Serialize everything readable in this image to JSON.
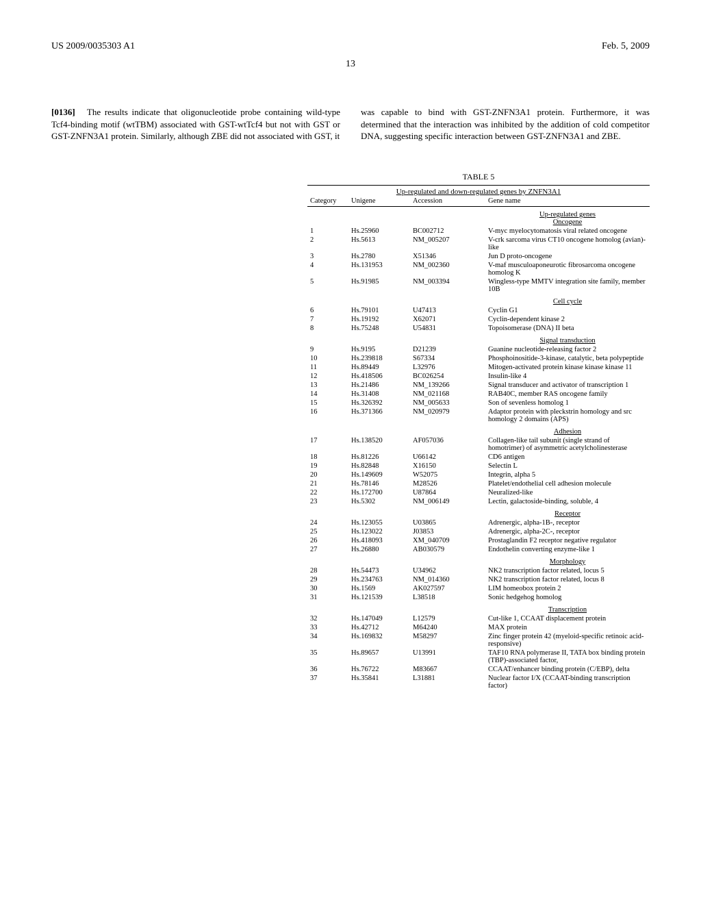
{
  "header": {
    "left": "US 2009/0035303 A1",
    "right": "Feb. 5, 2009"
  },
  "page_number": "13",
  "left_para": {
    "num": "[0136]",
    "text": "The results indicate that oligonucleotide probe containing wild-type Tcf4-binding motif (wtTBM) associated with GST-wtTcf4 but not with GST or GST-ZNFN3A1 protein. Similarly, although ZBE did not associated with GST, it"
  },
  "right_para": {
    "text": "was capable to bind with GST-ZNFN3A1 protein. Furthermore, it was determined that the interaction was inhibited by the addition of cold competitor DNA, suggesting specific interaction between GST-ZNFN3A1 and ZBE."
  },
  "table": {
    "caption": "TABLE 5",
    "subcaption": "Up-regulated and down-regulated genes by ZNFN3A1",
    "columns": [
      "Category",
      "Unigene",
      "Accession",
      "Gene name"
    ],
    "sections": [
      {
        "title_lines": [
          "Up-regulated genes",
          "Oncogene"
        ],
        "rows": [
          [
            "1",
            "Hs.25960",
            "BC002712",
            "V-myc myelocytomatosis viral related oncogene"
          ],
          [
            "2",
            "Hs.5613",
            "NM_005207",
            "V-crk sarcoma virus CT10 oncogene homolog (avian)-like"
          ],
          [
            "3",
            "Hs.2780",
            "X51346",
            "Jun D proto-oncogene"
          ],
          [
            "4",
            "Hs.131953",
            "NM_002360",
            "V-maf musculoaponeurotic fibrosarcoma oncogene homolog K"
          ],
          [
            "5",
            "Hs.91985",
            "NM_003394",
            "Wingless-type MMTV integration site family, member 10B"
          ]
        ]
      },
      {
        "title_lines": [
          "Cell cycle"
        ],
        "rows": [
          [
            "6",
            "Hs.79101",
            "U47413",
            "Cyclin G1"
          ],
          [
            "7",
            "Hs.19192",
            "X62071",
            "Cyclin-dependent kinase 2"
          ],
          [
            "8",
            "Hs.75248",
            "U54831",
            "Topoisomerase (DNA) II beta"
          ]
        ]
      },
      {
        "title_lines": [
          "Signal transduction"
        ],
        "rows": [
          [
            "9",
            "Hs.9195",
            "D21239",
            "Guanine nucleotide-releasing factor 2"
          ],
          [
            "10",
            "Hs.239818",
            "S67334",
            "Phosphoinositide-3-kinase, catalytic, beta polypeptide"
          ],
          [
            "11",
            "Hs.89449",
            "L32976",
            "Mitogen-activated protein kinase kinase kinase 11"
          ],
          [
            "12",
            "Hs.418506",
            "BC026254",
            "Insulin-like 4"
          ],
          [
            "13",
            "Hs.21486",
            "NM_139266",
            "Signal transducer and activator of transcription 1"
          ],
          [
            "14",
            "Hs.31408",
            "NM_021168",
            "RAB40C, member RAS oncogene family"
          ],
          [
            "15",
            "Hs.326392",
            "NM_005633",
            "Son of sevenless homolog 1"
          ],
          [
            "16",
            "Hs.371366",
            "NM_020979",
            "Adaptor protein with pleckstrin homology and src homology 2 domains (APS)"
          ]
        ]
      },
      {
        "title_lines": [
          "Adhesion"
        ],
        "rows": [
          [
            "17",
            "Hs.138520",
            "AF057036",
            "Collagen-like tail subunit (single strand of homotrimer) of asymmetric acetylcholinesterase"
          ],
          [
            "18",
            "Hs.81226",
            "U66142",
            "CD6 antigen"
          ],
          [
            "19",
            "Hs.82848",
            "X16150",
            "Selectin L"
          ],
          [
            "20",
            "Hs.149609",
            "W52075",
            "Integrin, alpha 5"
          ],
          [
            "21",
            "Hs.78146",
            "M28526",
            "Platelet/endothelial cell adhesion molecule"
          ],
          [
            "22",
            "Hs.172700",
            "U87864",
            "Neuralized-like"
          ],
          [
            "23",
            "Hs.5302",
            "NM_006149",
            "Lectin, galactoside-binding, soluble, 4"
          ]
        ]
      },
      {
        "title_lines": [
          "Receptor"
        ],
        "rows": [
          [
            "24",
            "Hs.123055",
            "U03865",
            "Adrenergic, alpha-1B-, receptor"
          ],
          [
            "25",
            "Hs.123022",
            "J03853",
            "Adrenergic, alpha-2C-, receptor"
          ],
          [
            "26",
            "Hs.418093",
            "XM_040709",
            "Prostaglandin F2 receptor negative regulator"
          ],
          [
            "27",
            "Hs.26880",
            "AB030579",
            "Endothelin converting enzyme-like 1"
          ]
        ]
      },
      {
        "title_lines": [
          "Morphology"
        ],
        "rows": [
          [
            "28",
            "Hs.54473",
            "U34962",
            "NK2 transcription factor related, locus 5"
          ],
          [
            "29",
            "Hs.234763",
            "NM_014360",
            "NK2 transcription factor related, locus 8"
          ],
          [
            "30",
            "Hs.1569",
            "AK027597",
            "LIM homeobox protein 2"
          ],
          [
            "31",
            "Hs.121539",
            "L38518",
            "Sonic hedgehog homolog"
          ]
        ]
      },
      {
        "title_lines": [
          "Transcription"
        ],
        "rows": [
          [
            "32",
            "Hs.147049",
            "L12579",
            "Cut-like 1, CCAAT displacement protein"
          ],
          [
            "33",
            "Hs.42712",
            "M64240",
            "MAX protein"
          ],
          [
            "34",
            "Hs.169832",
            "M58297",
            "Zinc finger protein 42 (myeloid-specific retinoic acid-responsive)"
          ],
          [
            "35",
            "Hs.89657",
            "U13991",
            "TAF10 RNA polymerase II, TATA box binding protein (TBP)-associated factor,"
          ],
          [
            "36",
            "Hs.76722",
            "M83667",
            "CCAAT/enhancer binding protein (C/EBP), delta"
          ],
          [
            "37",
            "Hs.35841",
            "L31881",
            "Nuclear factor I/X (CCAAT-binding transcription factor)"
          ]
        ]
      }
    ],
    "col_widths_pct": [
      12,
      18,
      22,
      48
    ]
  }
}
